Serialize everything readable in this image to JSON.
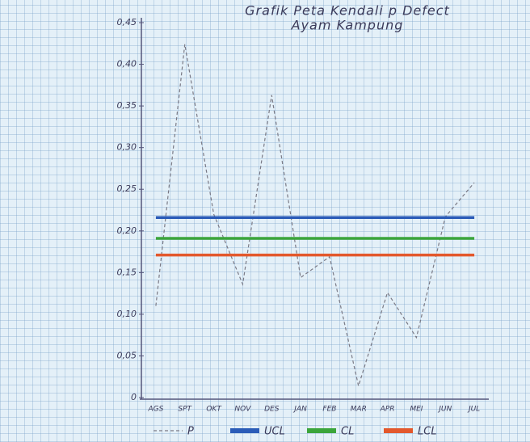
{
  "chart_data": {
    "type": "line",
    "title": "Grafik Peta Kendali p Defect",
    "subtitle": "Ayam Kampung",
    "categories": [
      "AGS",
      "SPT",
      "OKT",
      "NOV",
      "DES",
      "JAN",
      "FEB",
      "MAR",
      "APR",
      "MEI",
      "JUN",
      "JUL"
    ],
    "series": [
      {
        "name": "P",
        "color": "#7a7a86",
        "dashed": true,
        "values": [
          0.11,
          0.424,
          0.22,
          0.136,
          0.363,
          0.144,
          0.169,
          0.014,
          0.126,
          0.072,
          0.217,
          0.258
        ]
      },
      {
        "name": "UCL",
        "color": "#2b5cb8",
        "dashed": false,
        "values": [
          0.216,
          0.216,
          0.216,
          0.216,
          0.216,
          0.216,
          0.216,
          0.216,
          0.216,
          0.216,
          0.216,
          0.216
        ]
      },
      {
        "name": "CL",
        "color": "#3ba53b",
        "dashed": false,
        "values": [
          0.191,
          0.191,
          0.191,
          0.191,
          0.191,
          0.191,
          0.191,
          0.191,
          0.191,
          0.191,
          0.191,
          0.191
        ]
      },
      {
        "name": "LCL",
        "color": "#e3582c",
        "dashed": false,
        "values": [
          0.171,
          0.171,
          0.171,
          0.171,
          0.171,
          0.171,
          0.171,
          0.171,
          0.171,
          0.171,
          0.171,
          0.171
        ]
      }
    ],
    "ylim": [
      0,
      0.45
    ],
    "yticks": [
      {
        "value": 0,
        "label": "0"
      },
      {
        "value": 0.05,
        "label": "0,05"
      },
      {
        "value": 0.1,
        "label": "0,10"
      },
      {
        "value": 0.15,
        "label": "0,15"
      },
      {
        "value": 0.2,
        "label": "0,20"
      },
      {
        "value": 0.25,
        "label": "0,25"
      },
      {
        "value": 0.3,
        "label": "0,30"
      },
      {
        "value": 0.35,
        "label": "0,35"
      },
      {
        "value": 0.4,
        "label": "0,40"
      },
      {
        "value": 0.45,
        "label": "0,45"
      }
    ],
    "legend": "bottom"
  }
}
